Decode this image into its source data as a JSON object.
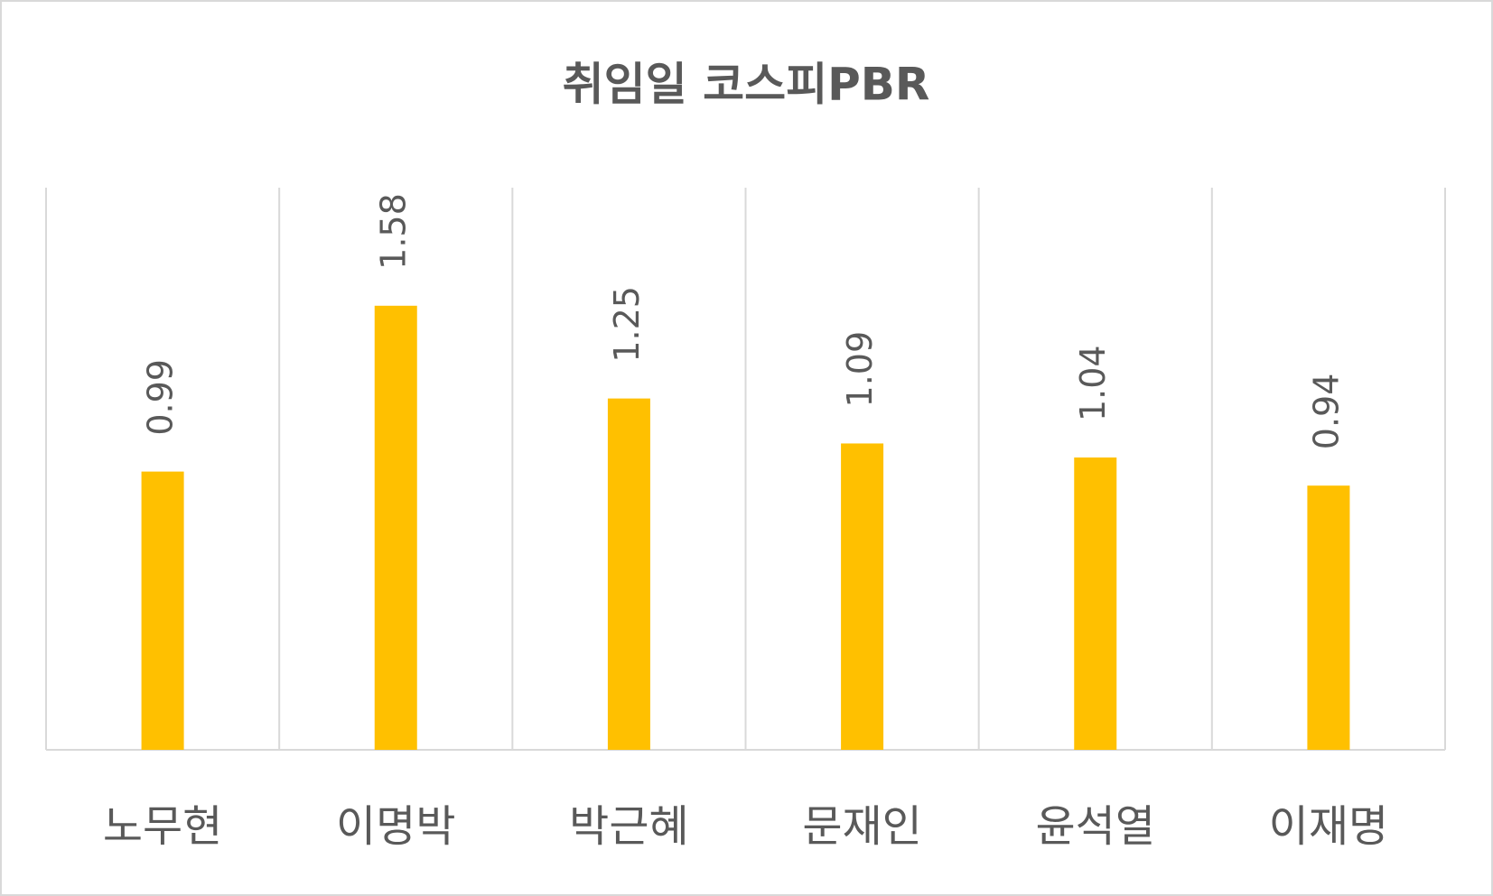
{
  "chart_data": {
    "type": "bar",
    "title": "취임일 코스피PBR",
    "categories": [
      "노무현",
      "이명박",
      "박근혜",
      "문재인",
      "윤석열",
      "이재명"
    ],
    "values": [
      0.99,
      1.58,
      1.25,
      1.09,
      1.04,
      0.94
    ],
    "color": "#ffc000",
    "ylim": [
      0,
      2
    ]
  }
}
